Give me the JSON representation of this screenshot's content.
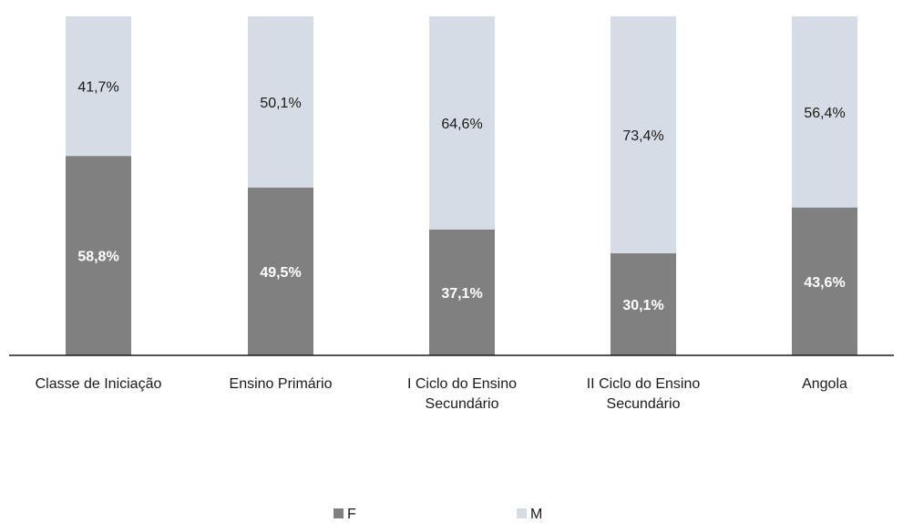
{
  "chart_data": {
    "type": "bar",
    "stacked": true,
    "categories": [
      "Classe de Iniciação",
      "Ensino Primário",
      "I Ciclo do Ensino Secundário",
      "II Ciclo do Ensino Secundário",
      "Angola"
    ],
    "series": [
      {
        "name": "F",
        "values": [
          58.8,
          49.5,
          37.1,
          30.1,
          43.6
        ],
        "labels": [
          "58,8%",
          "49,5%",
          "37,1%",
          "30,1%",
          "43,6%"
        ],
        "color": "#808080"
      },
      {
        "name": "M",
        "values": [
          41.7,
          50.1,
          64.6,
          73.4,
          56.4
        ],
        "labels": [
          "41,7%",
          "50,1%",
          "64,6%",
          "73,4%",
          "56,4%"
        ],
        "color": "#d6dce5"
      }
    ],
    "ylim": [
      0,
      100
    ],
    "grid": false,
    "legend": "bottom"
  }
}
